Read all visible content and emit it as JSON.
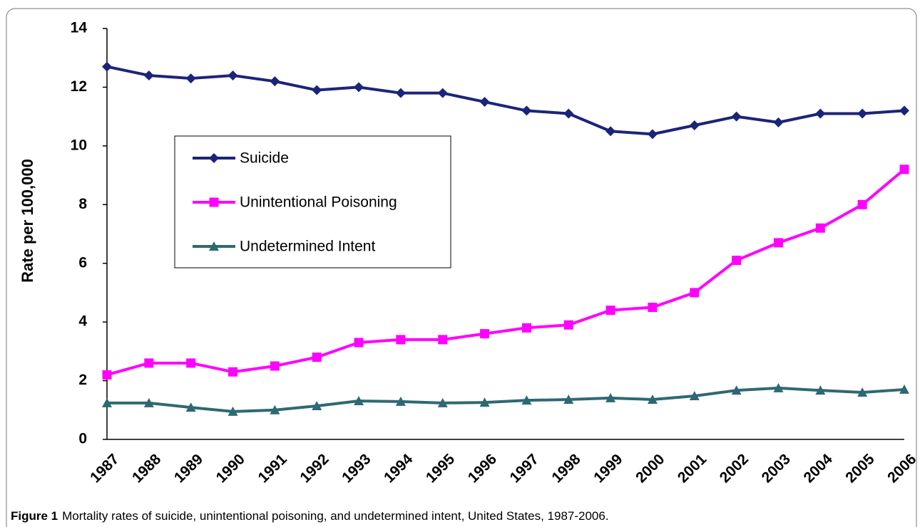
{
  "chart_data": {
    "type": "line",
    "ylabel": "Rate per 100,000",
    "categories": [
      "1987",
      "1988",
      "1989",
      "1990",
      "1991",
      "1992",
      "1993",
      "1994",
      "1995",
      "1996",
      "1997",
      "1998",
      "1999",
      "2000",
      "2001",
      "2002",
      "2003",
      "2004",
      "2005",
      "2006"
    ],
    "series": [
      {
        "name": "Suicide",
        "color": "#1c2479",
        "marker": "diamond",
        "values": [
          12.7,
          12.4,
          12.3,
          12.4,
          12.2,
          11.9,
          12.0,
          11.8,
          11.8,
          11.5,
          11.2,
          11.1,
          10.5,
          10.4,
          10.7,
          11.0,
          10.8,
          11.1,
          11.1,
          11.2
        ]
      },
      {
        "name": "Unintentional Poisoning",
        "color": "#ff00ff",
        "marker": "square",
        "values": [
          2.2,
          2.6,
          2.6,
          2.3,
          2.5,
          2.8,
          3.3,
          3.4,
          3.4,
          3.6,
          3.8,
          3.9,
          4.4,
          4.5,
          5.0,
          6.1,
          6.7,
          7.2,
          8.0,
          9.2
        ]
      },
      {
        "name": "Undetermined Intent",
        "color": "#2e6973",
        "marker": "triangle",
        "values": [
          1.24,
          1.24,
          1.09,
          0.95,
          1.0,
          1.14,
          1.31,
          1.29,
          1.24,
          1.26,
          1.33,
          1.36,
          1.41,
          1.36,
          1.48,
          1.67,
          1.75,
          1.67,
          1.6,
          1.7
        ]
      }
    ],
    "ylim": [
      0,
      14
    ],
    "yticks": [
      0,
      2,
      4,
      6,
      8,
      10,
      12,
      14
    ],
    "grid": false,
    "legend": "upper left",
    "caption_label": "Figure 1",
    "caption": "Mortality rates of suicide, unintentional poisoning, and undetermined intent, United States, 1987-2006."
  }
}
